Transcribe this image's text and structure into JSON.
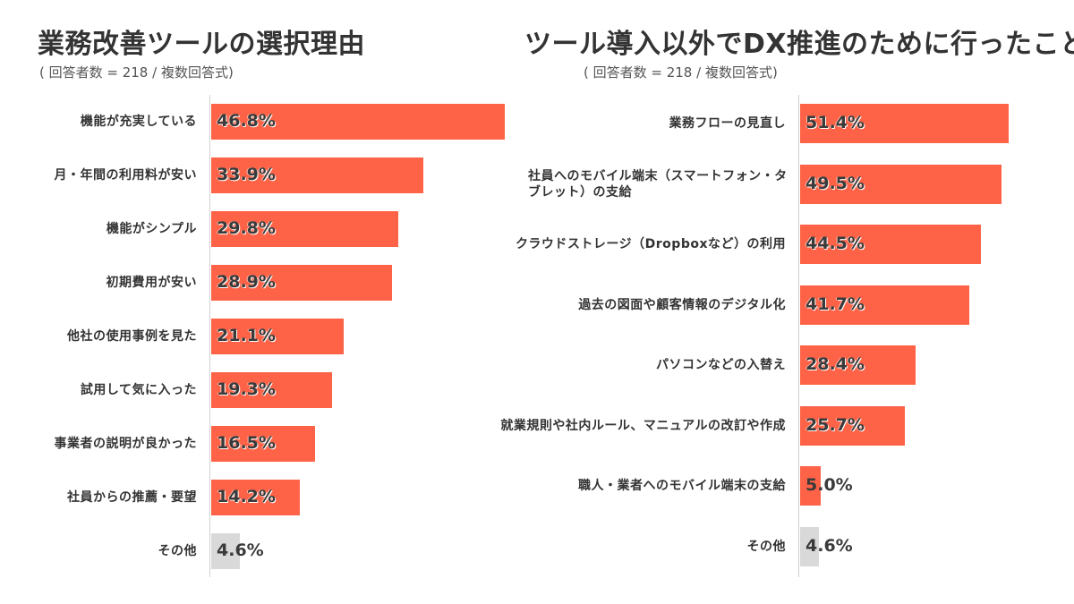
{
  "chart_data": [
    {
      "type": "bar",
      "orientation": "horizontal",
      "title": "業務改善ツールの選択理由",
      "subtitle": "( 回答者数 = 218 / 複数回答式)",
      "unit": "%",
      "xlim": [
        0,
        50
      ],
      "categories": [
        "機能が充実している",
        "月・年間の利用料が安い",
        "機能がシンプル",
        "初期費用が安い",
        "他社の使用事例を見た",
        "試用して気に入った",
        "事業者の説明が良かった",
        "社員からの推薦・要望",
        "その他"
      ],
      "values": [
        46.8,
        33.9,
        29.8,
        28.9,
        21.1,
        19.3,
        16.5,
        14.2,
        4.6
      ],
      "labels": [
        "46.8%",
        "33.9%",
        "29.8%",
        "28.9%",
        "21.1%",
        "19.3%",
        "16.5%",
        "14.2%",
        "4.6%"
      ],
      "colors": [
        "#ff6347",
        "#ff6347",
        "#ff6347",
        "#ff6347",
        "#ff6347",
        "#ff6347",
        "#ff6347",
        "#ff6347",
        "#d9d9d9"
      ]
    },
    {
      "type": "bar",
      "orientation": "horizontal",
      "title": "ツール導入以外でDX推進のために行ったこと",
      "subtitle": "( 回答者数 = 218 / 複数回答式)",
      "unit": "%",
      "xlim": [
        0,
        56
      ],
      "categories": [
        "業務フローの見直し",
        "社員へのモバイル端末（スマートフォン・タブレット）の支給",
        "クラウドストレージ（Dropboxなど）の利用",
        "過去の図面や顧客情報のデジタル化",
        "パソコンなどの入替え",
        "就業規則や社内ルール、マニュアルの改訂や作成",
        "職人・業者へのモバイル端末の支給",
        "その他"
      ],
      "values": [
        51.4,
        49.5,
        44.5,
        41.7,
        28.4,
        25.7,
        5.0,
        4.6
      ],
      "labels": [
        "51.4%",
        "49.5%",
        "44.5%",
        "41.7%",
        "28.4%",
        "25.7%",
        "5.0%",
        "4.6%"
      ],
      "colors": [
        "#ff6347",
        "#ff6347",
        "#ff6347",
        "#ff6347",
        "#ff6347",
        "#ff6347",
        "#ff6347",
        "#d9d9d9"
      ]
    }
  ]
}
